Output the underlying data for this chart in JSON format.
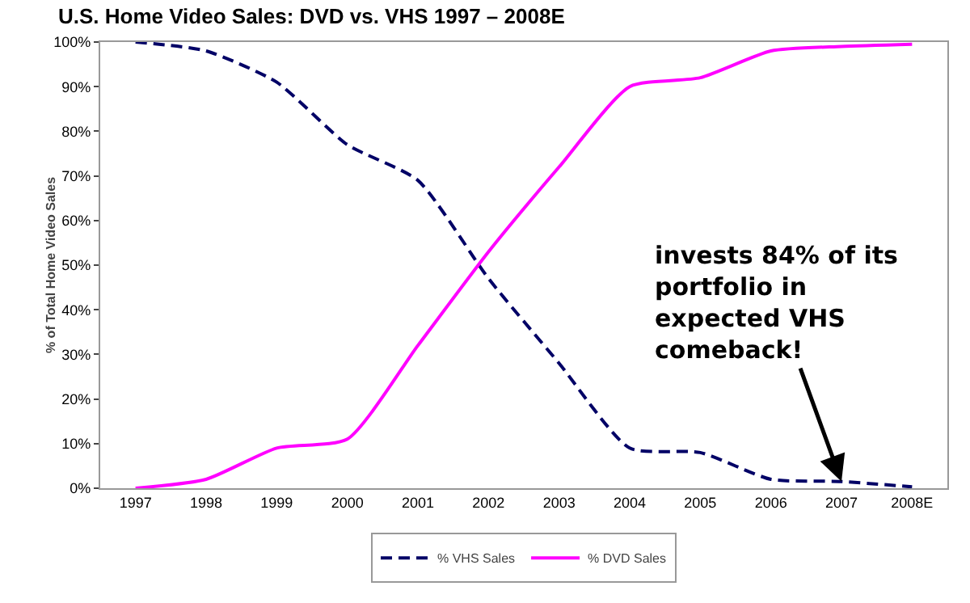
{
  "chart_data": {
    "type": "line",
    "title": "U.S. Home Video Sales: DVD vs. VHS 1997 – 2008E",
    "ylabel": "% of Total Home Video Sales",
    "categories": [
      "1997",
      "1998",
      "1999",
      "2000",
      "2001",
      "2002",
      "2003",
      "2004",
      "2005",
      "2006",
      "2007",
      "2008E"
    ],
    "series": [
      {
        "name": "% VHS Sales",
        "color": "#000066",
        "line_style": "dashed",
        "values": [
          100,
          98,
          91,
          77,
          69,
          47,
          28,
          9,
          8,
          2,
          1.5,
          0.3
        ]
      },
      {
        "name": "% DVD Sales",
        "color": "#ff00ff",
        "line_style": "solid",
        "values": [
          0,
          2,
          9,
          11,
          32,
          53,
          72,
          90,
          92,
          98,
          99,
          99.5
        ]
      }
    ],
    "ylim": [
      0,
      100
    ],
    "yticks": [
      {
        "value": 0,
        "label": "0%"
      },
      {
        "value": 10,
        "label": "10%"
      },
      {
        "value": 20,
        "label": "20%"
      },
      {
        "value": 30,
        "label": "30%"
      },
      {
        "value": 40,
        "label": "40%"
      },
      {
        "value": 50,
        "label": "50%"
      },
      {
        "value": 60,
        "label": "60%"
      },
      {
        "value": 70,
        "label": "70%"
      },
      {
        "value": 80,
        "label": "80%"
      },
      {
        "value": 90,
        "label": "90%"
      },
      {
        "value": 100,
        "label": "100%"
      }
    ],
    "grid": false,
    "legend": "bottom",
    "marker": "none",
    "annotations": [
      {
        "text": "invests 84% of its portfolio in expected VHS comeback!",
        "x": "2007",
        "y": 1.5
      }
    ]
  }
}
